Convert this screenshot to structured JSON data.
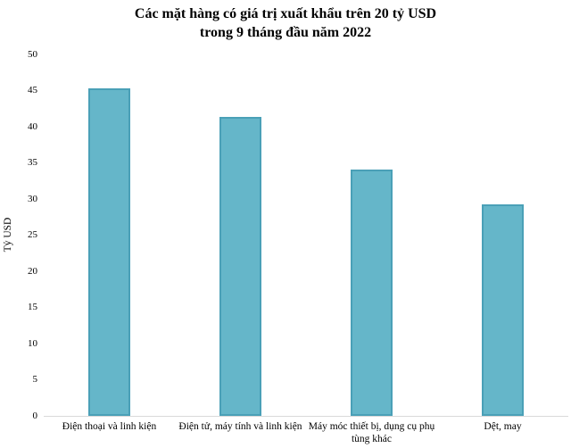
{
  "title": {
    "line1": "Các mặt hàng có giá trị xuất khẩu trên 20 tỷ USD",
    "line2": "trong 9 tháng đầu năm 2022"
  },
  "chart_data": {
    "type": "bar",
    "title": "Các mặt hàng có giá trị xuất khẩu trên 20 tỷ USD trong 9 tháng đầu năm 2022",
    "categories": [
      "Điện thoại và linh kiện",
      "Điện tử, máy tính và linh kiện",
      "Máy móc thiết bị, dụng cụ phụ tùng khác",
      "Dệt, may"
    ],
    "categories_display_lines": [
      [
        "Điện thoại và linh kiện"
      ],
      [
        "Điện tử, máy tính và linh kiện"
      ],
      [
        "Máy móc thiết bị, dụng cụ phụ",
        "tùng khác"
      ],
      [
        "Dệt, may"
      ]
    ],
    "values": [
      45.3,
      41.4,
      34.1,
      29.2
    ],
    "xlabel": "",
    "ylabel": "Tỷ USD",
    "ylim": [
      0,
      50
    ],
    "ytick_step": 5,
    "yticks": [
      0,
      5,
      10,
      15,
      20,
      25,
      30,
      35,
      40,
      45,
      50
    ],
    "grid": false,
    "legend": false,
    "bar_color": "#65B6C9",
    "bar_border_color": "#4AA0B7",
    "axis_line_color": "#D9D9D9",
    "text_color": "#000000"
  }
}
